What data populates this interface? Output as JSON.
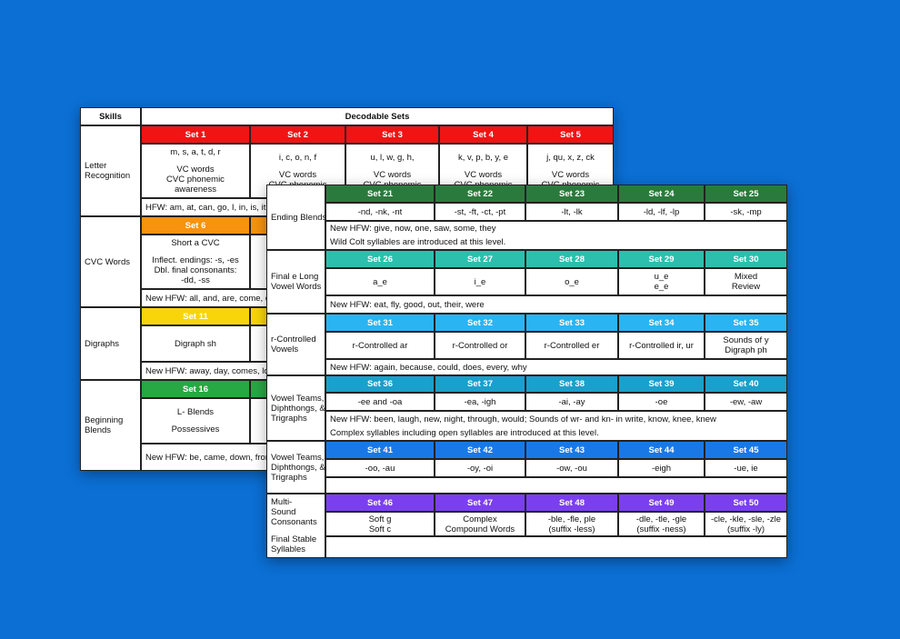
{
  "back_table": {
    "header": [
      "Skills",
      "Decodable Sets"
    ],
    "groups": [
      {
        "skill": [
          [
            "Letter",
            "Recognition"
          ]
        ],
        "color": "#f01414",
        "sets": [
          "Set 1",
          "Set 2",
          "Set 3",
          "Set 4",
          "Set 5"
        ],
        "cells": [
          [
            [
              "m, s, a, t, d, r"
            ],
            [
              "VC words",
              "CVC phonemic",
              "awareness"
            ]
          ],
          [
            [
              "i, c, o, n, f"
            ],
            [
              "VC words",
              "CVC phonemic"
            ]
          ],
          [
            [
              "u, l, w, g, h,"
            ],
            [
              "VC words",
              "CVC phonemic"
            ]
          ],
          [
            [
              "k, v, p, b, y, e"
            ],
            [
              "VC words",
              "CVC phonemic"
            ]
          ],
          [
            [
              "j, qu, x, z, ck"
            ],
            [
              "VC words",
              "CVC phonemic"
            ]
          ]
        ],
        "note": [
          "HFW: am, at, can, go, I, in, is, it,"
        ]
      },
      {
        "skill": [
          [
            "CVC Words"
          ]
        ],
        "color": "#f7930e",
        "sets": [
          "Set 6"
        ],
        "cells": [
          [
            [
              "Short a CVC"
            ],
            [
              "Inflect. endings: -s, -es",
              "Dbl. final consonants:",
              "-dd, -ss"
            ]
          ]
        ],
        "note": [
          "New HFW: all, and, are, come, do"
        ]
      },
      {
        "skill": [
          [
            "Digraphs"
          ]
        ],
        "color": "#f7d50a",
        "sets": [
          "Set 11"
        ],
        "cells": [
          [
            [
              "Digraph sh"
            ]
          ]
        ],
        "note": [
          "New HFW: away, day, comes, loo"
        ]
      },
      {
        "skill": [
          [
            "Beginning",
            "Blends"
          ]
        ],
        "color": "#28a745",
        "sets": [
          "Set 16"
        ],
        "cells": [
          [
            [
              "L- Blends"
            ],
            [
              "Possessives"
            ]
          ]
        ],
        "note": [
          "New HFW: be, came, down, from"
        ]
      }
    ]
  },
  "front_table": {
    "groups": [
      {
        "skill": [
          [
            "Ending Blends"
          ]
        ],
        "color": "#2b7a3d",
        "sets": [
          "Set 21",
          "Set 22",
          "Set 23",
          "Set 24",
          "Set 25"
        ],
        "cells": [
          [
            [
              "-nd, -nk, -nt"
            ]
          ],
          [
            [
              "-st, -ft, -ct, -pt"
            ]
          ],
          [
            [
              "-lt, -lk"
            ]
          ],
          [
            [
              "-ld, -lf, -lp"
            ]
          ],
          [
            [
              "-sk, -mp"
            ]
          ]
        ],
        "note": [
          "New HFW: give, now, one, saw, some, they",
          "Wild Colt syllables are introduced at this level."
        ]
      },
      {
        "skill": [
          [
            "Final e Long",
            "Vowel Words"
          ]
        ],
        "color": "#2cbfae",
        "sets": [
          "Set 26",
          "Set 27",
          "Set 28",
          "Set 29",
          "Set 30"
        ],
        "cells": [
          [
            [
              "a_e"
            ]
          ],
          [
            [
              "i_e"
            ]
          ],
          [
            [
              "o_e"
            ]
          ],
          [
            [
              "u_e",
              "e_e"
            ]
          ],
          [
            [
              "Mixed",
              "Review"
            ]
          ]
        ],
        "note": [
          "New HFW: eat, fly, good, out, their, were"
        ]
      },
      {
        "skill": [
          [
            "r-Controlled",
            "Vowels"
          ]
        ],
        "color": "#2ab4f2",
        "sets": [
          "Set 31",
          "Set 32",
          "Set 33",
          "Set 34",
          "Set 35"
        ],
        "cells": [
          [
            [
              "r-Controlled ar"
            ]
          ],
          [
            [
              "r-Controlled or"
            ]
          ],
          [
            [
              "r-Controlled er"
            ]
          ],
          [
            [
              "r-Controlled ir, ur"
            ]
          ],
          [
            [
              "Sounds of y",
              "Digraph ph"
            ]
          ]
        ],
        "note": [
          "New HFW: again, because, could, does, every, why"
        ]
      },
      {
        "skill": [
          [
            "Vowel Teams,",
            "Diphthongs, &",
            "Trigraphs"
          ]
        ],
        "color": "#1aa0cc",
        "sets": [
          "Set 36",
          "Set 37",
          "Set 38",
          "Set 39",
          "Set 40"
        ],
        "cells": [
          [
            [
              "-ee and -oa"
            ]
          ],
          [
            [
              "-ea, -igh"
            ]
          ],
          [
            [
              "-ai, -ay"
            ]
          ],
          [
            [
              "-oe"
            ]
          ],
          [
            [
              "-ew, -aw"
            ]
          ]
        ],
        "note": [
          "New HFW: been, laugh, new, night, through, would; Sounds of wr- and kn- in write, know, knee, knew",
          "Complex syllables including open syllables are introduced at this level."
        ]
      },
      {
        "skill": [
          [
            "Vowel Teams,",
            "Diphthongs, &",
            "Trigraphs"
          ]
        ],
        "color": "#1a78e6",
        "sets": [
          "Set 41",
          "Set 42",
          "Set 43",
          "Set 44",
          "Set 45"
        ],
        "cells": [
          [
            [
              "-oo, -au"
            ]
          ],
          [
            [
              "-oy, -oi"
            ]
          ],
          [
            [
              "-ow, -ou"
            ]
          ],
          [
            [
              "-eigh"
            ]
          ],
          [
            [
              "-ue, ie"
            ]
          ]
        ]
      },
      {
        "skill": [
          [
            "Multi-",
            "Sound",
            "Consonants"
          ],
          [
            "Final Stable",
            "Syllables"
          ]
        ],
        "color": "#7b3ff0",
        "sets": [
          "Set 46",
          "Set 47",
          "Set 48",
          "Set 49",
          "Set 50"
        ],
        "cells": [
          [
            [
              "Soft g",
              "Soft c"
            ]
          ],
          [
            [
              "Complex",
              "Compound Words"
            ]
          ],
          [
            [
              "-ble, -fle, ple",
              "(suffix -less)"
            ]
          ],
          [
            [
              "-dle, -tle, -gle",
              "(suffix -ness)"
            ]
          ],
          [
            [
              "-cle, -kle, -sle, -zle",
              "(suffix -ly)"
            ]
          ]
        ]
      }
    ]
  }
}
